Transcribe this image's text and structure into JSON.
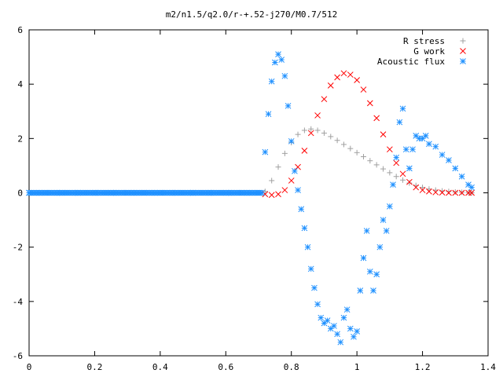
{
  "chart_data": {
    "type": "scatter",
    "title": "m2/n1.5/q2.0/r-+.52-j270/M0.7/512",
    "xlabel": "",
    "ylabel": "",
    "xlim": [
      0,
      1.4
    ],
    "ylim": [
      -6,
      6
    ],
    "x_ticks": [
      0,
      0.2,
      0.4,
      0.6,
      0.8,
      1,
      1.2,
      1.4
    ],
    "x_tick_labels": [
      "0",
      "0.2",
      "0.4",
      "0.6",
      "0.8",
      "1",
      "1.2",
      "1.4"
    ],
    "y_ticks": [
      -6,
      -4,
      -2,
      0,
      2,
      4,
      6
    ],
    "y_tick_labels": [
      "-6",
      "-4",
      "-2",
      "0",
      "2",
      "4",
      "6"
    ],
    "grid": false,
    "legend_position": "top-right",
    "series": [
      {
        "name": "R stress",
        "marker": "plus",
        "color": "#a0a0a0",
        "x": [
          0.72,
          0.74,
          0.76,
          0.78,
          0.8,
          0.82,
          0.84,
          0.86,
          0.88,
          0.9,
          0.92,
          0.94,
          0.96,
          0.98,
          1.0,
          1.02,
          1.04,
          1.06,
          1.08,
          1.1,
          1.12,
          1.14,
          1.16,
          1.18,
          1.2,
          1.22,
          1.24,
          1.26,
          1.28,
          1.3,
          1.32,
          1.34,
          1.35
        ],
        "y": [
          0.05,
          0.45,
          0.95,
          1.45,
          1.85,
          2.15,
          2.3,
          2.35,
          2.3,
          2.2,
          2.07,
          1.93,
          1.78,
          1.63,
          1.48,
          1.33,
          1.18,
          1.03,
          0.88,
          0.74,
          0.6,
          0.47,
          0.36,
          0.27,
          0.2,
          0.14,
          0.1,
          0.07,
          0.05,
          0.03,
          0.02,
          0.01,
          0.0
        ]
      },
      {
        "name": "G work",
        "marker": "cross",
        "color": "#ff0000",
        "x": [
          0.72,
          0.74,
          0.76,
          0.78,
          0.8,
          0.82,
          0.84,
          0.86,
          0.88,
          0.9,
          0.92,
          0.94,
          0.96,
          0.98,
          1.0,
          1.02,
          1.04,
          1.06,
          1.08,
          1.1,
          1.12,
          1.14,
          1.16,
          1.18,
          1.2,
          1.22,
          1.24,
          1.26,
          1.28,
          1.3,
          1.32,
          1.34,
          1.35
        ],
        "y": [
          -0.05,
          -0.08,
          -0.05,
          0.1,
          0.45,
          0.95,
          1.55,
          2.2,
          2.85,
          3.45,
          3.95,
          4.25,
          4.4,
          4.35,
          4.15,
          3.8,
          3.3,
          2.75,
          2.15,
          1.6,
          1.1,
          0.7,
          0.4,
          0.2,
          0.1,
          0.05,
          0.02,
          0.01,
          0.0,
          0.0,
          0.0,
          0.0,
          0.0
        ]
      },
      {
        "name": "Acoustic flux",
        "marker": "star",
        "color": "#1e90ff",
        "x": [
          0,
          0.05,
          0.1,
          0.15,
          0.2,
          0.25,
          0.3,
          0.35,
          0.4,
          0.45,
          0.5,
          0.55,
          0.6,
          0.65,
          0.7,
          0.72,
          0.73,
          0.74,
          0.75,
          0.76,
          0.77,
          0.78,
          0.79,
          0.8,
          0.81,
          0.82,
          0.83,
          0.84,
          0.85,
          0.86,
          0.87,
          0.88,
          0.89,
          0.9,
          0.91,
          0.92,
          0.93,
          0.94,
          0.95,
          0.96,
          0.97,
          0.98,
          0.99,
          1.0,
          1.01,
          1.02,
          1.03,
          1.04,
          1.05,
          1.06,
          1.07,
          1.08,
          1.09,
          1.1,
          1.11,
          1.12,
          1.13,
          1.14,
          1.15,
          1.16,
          1.17,
          1.18,
          1.19,
          1.2,
          1.21,
          1.22,
          1.24,
          1.26,
          1.28,
          1.3,
          1.32,
          1.34,
          1.35
        ],
        "y": [
          0,
          0,
          0,
          0,
          0,
          0,
          0,
          0,
          0,
          0,
          0,
          0,
          0,
          0,
          0,
          1.5,
          2.9,
          4.1,
          4.8,
          5.1,
          4.9,
          4.3,
          3.2,
          1.9,
          0.8,
          0.1,
          -0.6,
          -1.3,
          -2.0,
          -2.8,
          -3.5,
          -4.1,
          -4.6,
          -4.8,
          -4.7,
          -5.0,
          -4.9,
          -5.2,
          -5.5,
          -4.6,
          -4.3,
          -5.0,
          -5.3,
          -5.1,
          -3.6,
          -2.4,
          -1.4,
          -2.9,
          -3.6,
          -3.0,
          -2.0,
          -1.0,
          -1.4,
          -0.5,
          0.3,
          1.3,
          2.6,
          3.1,
          1.6,
          0.9,
          1.6,
          2.1,
          2.0,
          2.0,
          2.1,
          1.8,
          1.7,
          1.4,
          1.2,
          0.9,
          0.6,
          0.3,
          0.2
        ]
      }
    ]
  }
}
